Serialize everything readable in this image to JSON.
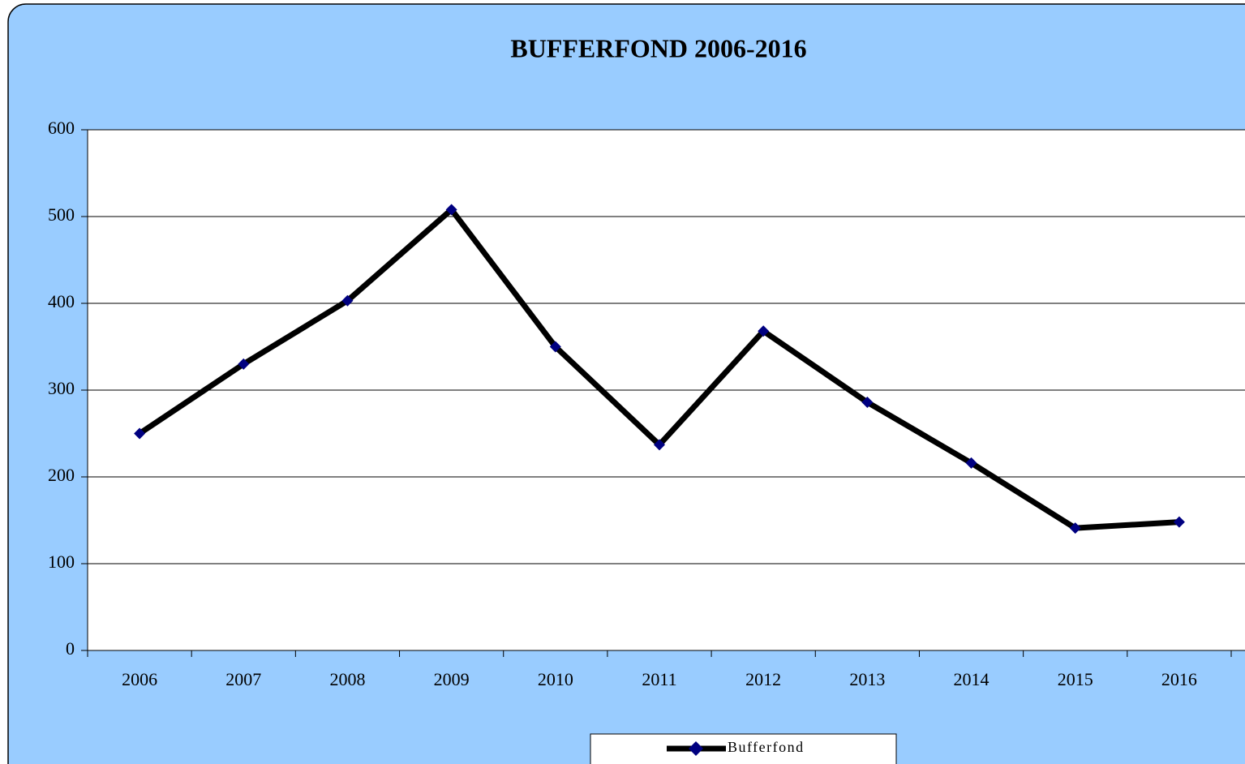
{
  "chart_data": {
    "type": "line",
    "title": "BUFFERFOND 2006-2016",
    "categories": [
      "2006",
      "2007",
      "2008",
      "2009",
      "2010",
      "2011",
      "2012",
      "2013",
      "2014",
      "2015",
      "2016"
    ],
    "series": [
      {
        "name": "Bufferfond",
        "color": "#000000",
        "marker_color": "#000080",
        "values": [
          250,
          330,
          403,
          508,
          350,
          237,
          368,
          286,
          216,
          141,
          148
        ]
      }
    ],
    "ylim": [
      0,
      600
    ],
    "yticks": [
      0,
      100,
      200,
      300,
      400,
      500,
      600
    ],
    "grid": true,
    "legend": "bottom"
  }
}
